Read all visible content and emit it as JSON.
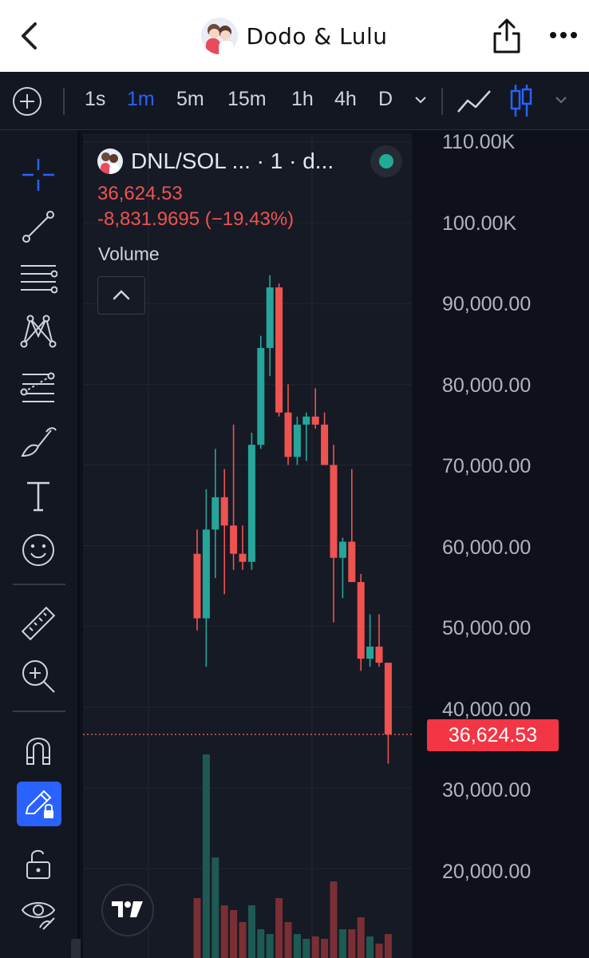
{
  "header": {
    "title": "Dodo & Lulu",
    "back_icon": "chevron-left-icon",
    "share_icon": "share-icon",
    "more_icon": "more-horizontal-icon"
  },
  "toolbar": {
    "timeframes": [
      "1s",
      "1m",
      "5m",
      "15m",
      "1h",
      "4h",
      "D"
    ],
    "active_timeframe": "1m",
    "accent_color": "#2962ff"
  },
  "legend": {
    "symbol": "DNL/SOL ... · 1 · d...",
    "last_price": "36,624.53",
    "change": "-8,831.9695 (−19.43%)",
    "volume_label": "Volume",
    "status_color": "#22ab94"
  },
  "price_scale": {
    "ticks": [
      "110.00K",
      "100.00K",
      "90,000.00",
      "80,000.00",
      "70,000.00",
      "60,000.00",
      "50,000.00",
      "40,000.00",
      "30,000.00",
      "20,000.00"
    ],
    "current_price_tag": "36,624.53"
  },
  "colors": {
    "up": "#26a69a",
    "down": "#ef5350",
    "volume_up": "#1e5a54",
    "volume_down": "#7a2f35"
  },
  "chart_data": {
    "type": "candlestick",
    "ylim": [
      10000,
      110000
    ],
    "current_price": 36624.53,
    "candles": [
      {
        "o": 59000,
        "h": 62000,
        "l": 49500,
        "c": 51000
      },
      {
        "o": 51000,
        "h": 67000,
        "l": 45000,
        "c": 62000
      },
      {
        "o": 62000,
        "h": 72000,
        "l": 56000,
        "c": 66000
      },
      {
        "o": 66000,
        "h": 69500,
        "l": 54000,
        "c": 62500
      },
      {
        "o": 62500,
        "h": 75000,
        "l": 57000,
        "c": 59000
      },
      {
        "o": 59000,
        "h": 62500,
        "l": 57000,
        "c": 58000
      },
      {
        "o": 58000,
        "h": 74000,
        "l": 57000,
        "c": 72500
      },
      {
        "o": 72500,
        "h": 86000,
        "l": 72000,
        "c": 84500
      },
      {
        "o": 84500,
        "h": 93500,
        "l": 81000,
        "c": 92000
      },
      {
        "o": 92000,
        "h": 92500,
        "l": 76000,
        "c": 76500
      },
      {
        "o": 76500,
        "h": 80000,
        "l": 70000,
        "c": 71000
      },
      {
        "o": 71000,
        "h": 76000,
        "l": 70000,
        "c": 75000
      },
      {
        "o": 75000,
        "h": 76500,
        "l": 70500,
        "c": 76000
      },
      {
        "o": 76000,
        "h": 79500,
        "l": 74500,
        "c": 75000
      },
      {
        "o": 75000,
        "h": 76500,
        "l": 70000,
        "c": 70000
      },
      {
        "o": 70000,
        "h": 72500,
        "l": 50500,
        "c": 58500
      },
      {
        "o": 58500,
        "h": 61000,
        "l": 53500,
        "c": 60500
      },
      {
        "o": 60500,
        "h": 69500,
        "l": 56000,
        "c": 55500
      },
      {
        "o": 55500,
        "h": 56500,
        "l": 44500,
        "c": 46000
      },
      {
        "o": 46000,
        "h": 51500,
        "l": 45000,
        "c": 47500
      },
      {
        "o": 47500,
        "h": 51500,
        "l": 45000,
        "c": 45500
      },
      {
        "o": 45500,
        "h": 45500,
        "l": 33000,
        "c": 36624.53
      }
    ],
    "volume": [
      0.25,
      0.85,
      0.42,
      0.22,
      0.2,
      0.15,
      0.22,
      0.12,
      0.1,
      0.25,
      0.15,
      0.1,
      0.08,
      0.09,
      0.08,
      0.32,
      0.12,
      0.12,
      0.17,
      0.09,
      0.06,
      0.1
    ]
  }
}
